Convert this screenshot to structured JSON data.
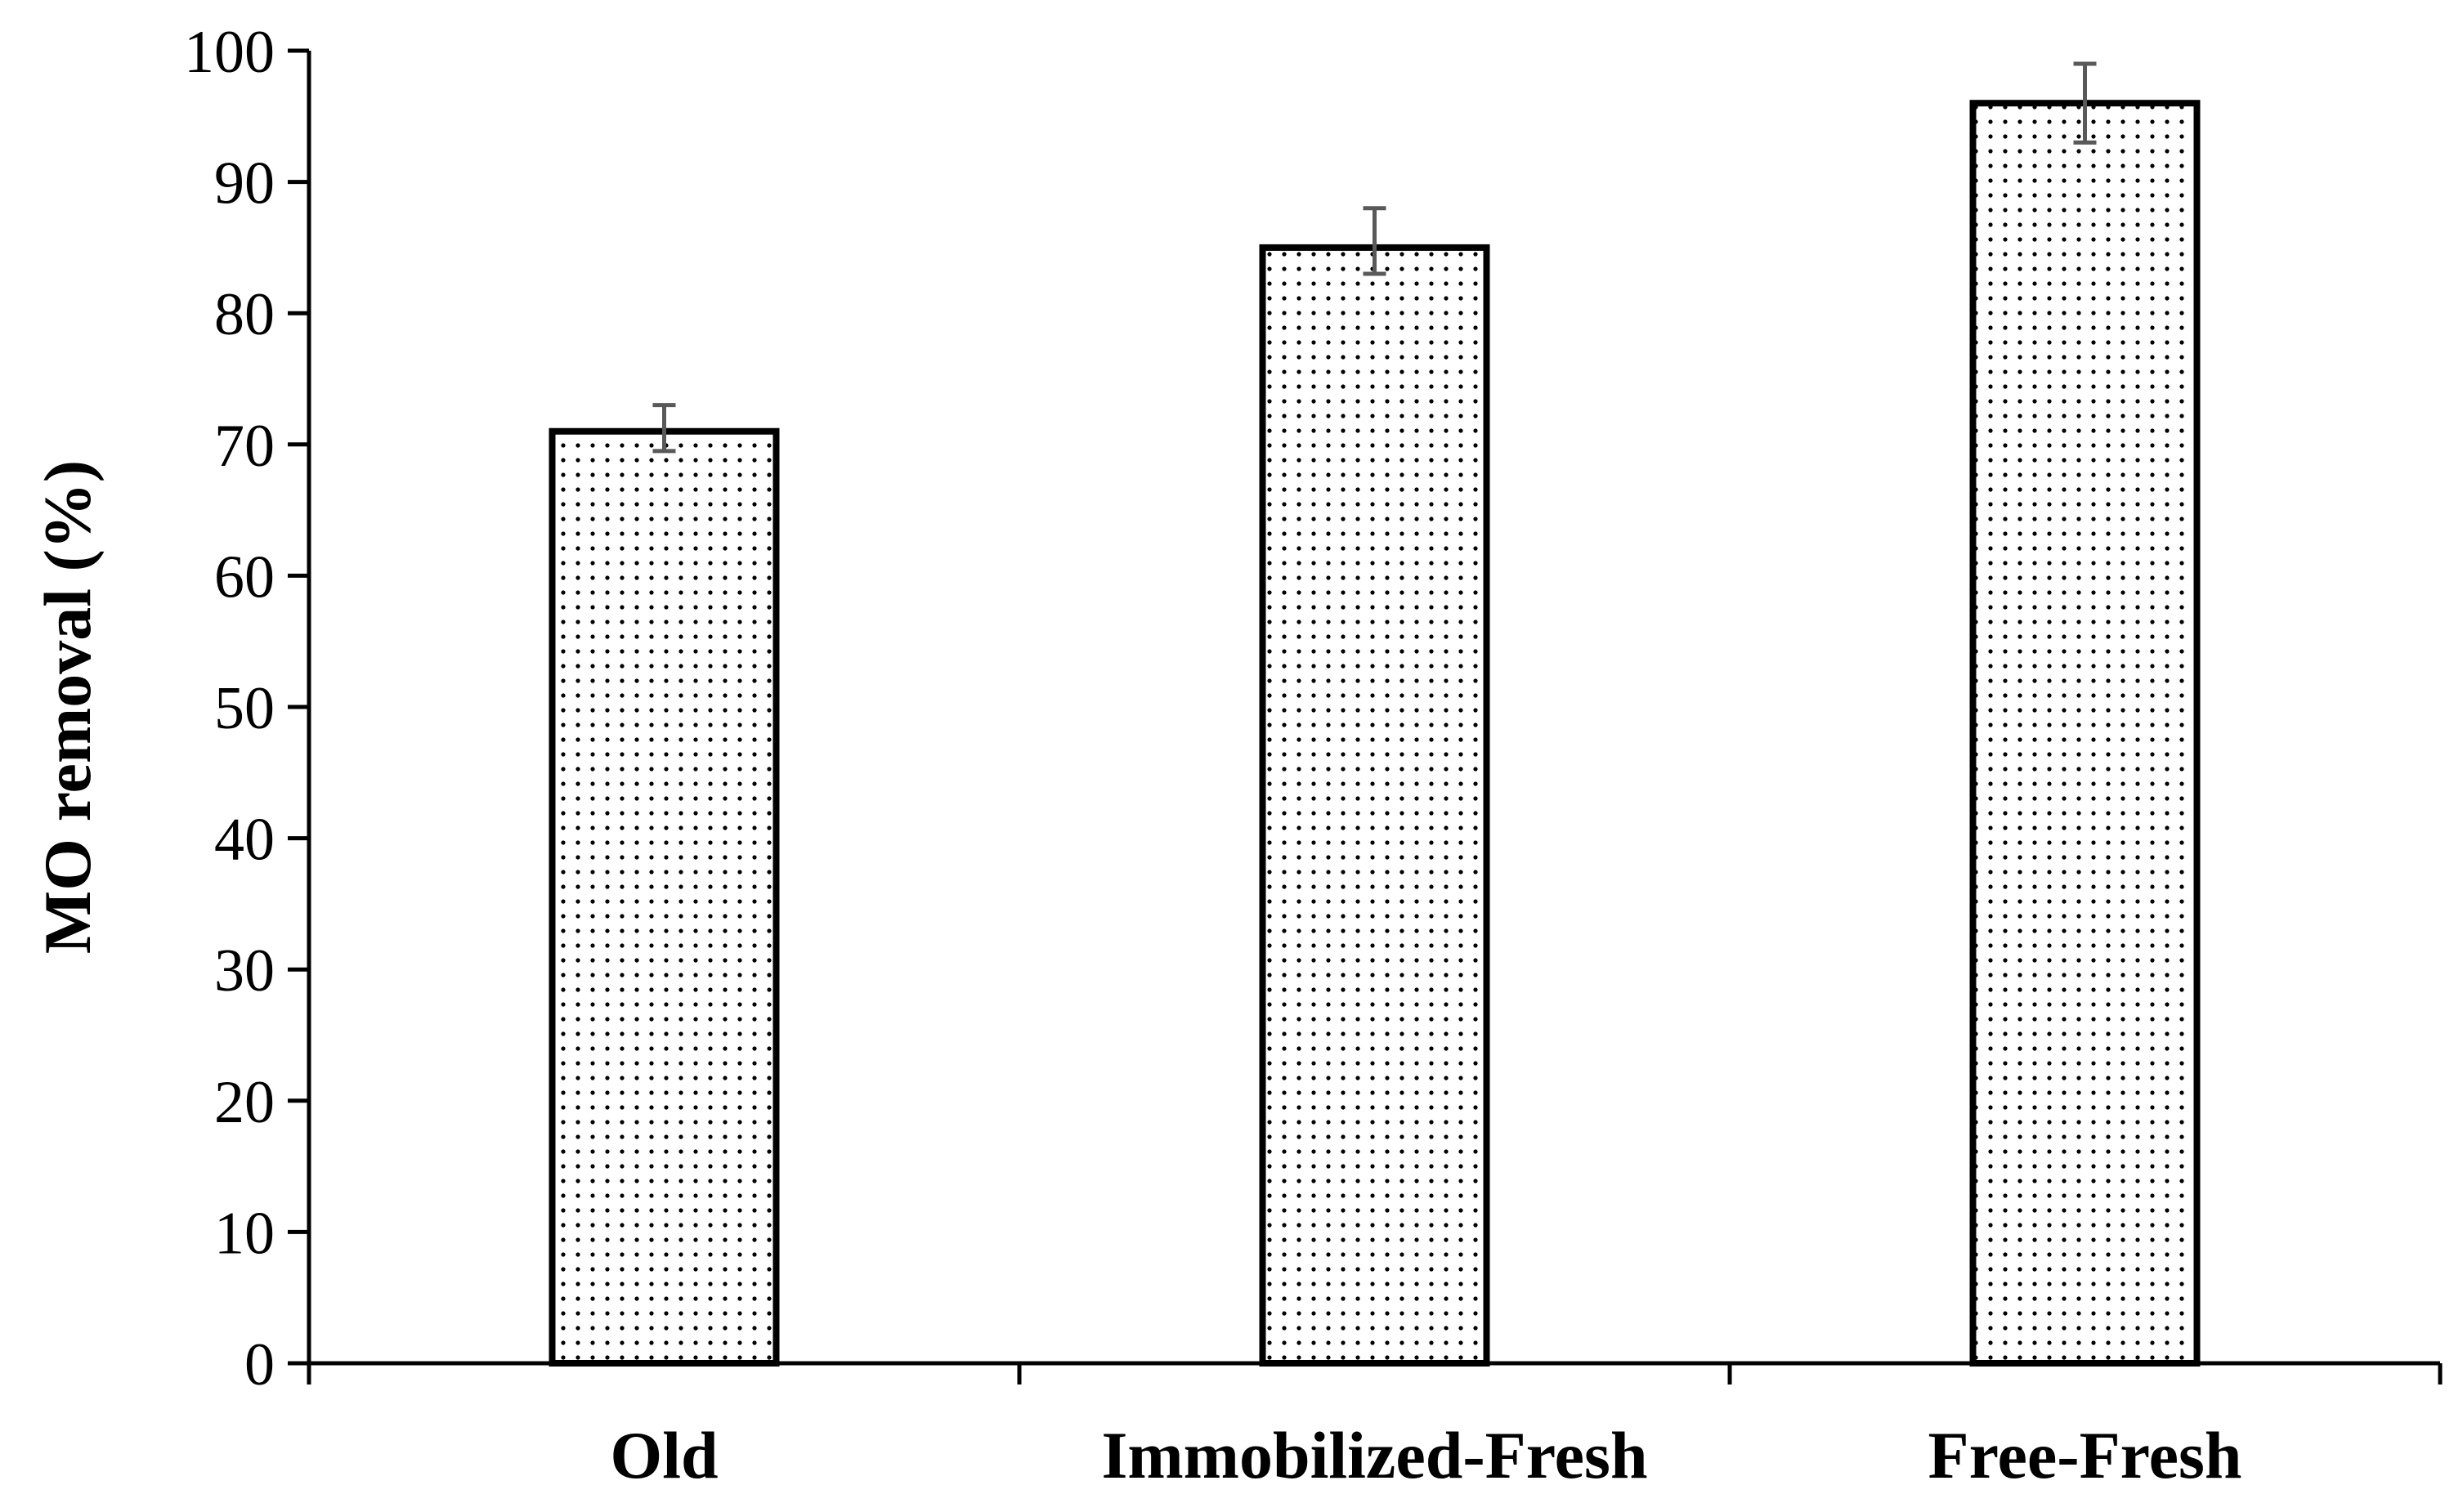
{
  "chart_data": {
    "type": "bar",
    "title": "",
    "xlabel": "",
    "ylabel": "MO removal (%)",
    "categories": [
      "Old",
      "Immobilized-Fresh",
      "Free-Fresh"
    ],
    "values": [
      71,
      85,
      96
    ],
    "error_low": [
      69.5,
      83,
      93
    ],
    "error_high": [
      73,
      88,
      99
    ],
    "ylim": [
      0,
      100
    ],
    "yticks": [
      0,
      10,
      20,
      30,
      40,
      50,
      60,
      70,
      80,
      90,
      100
    ],
    "grid": false,
    "legend": "none",
    "bar_fill": "dotted pattern",
    "colors": {
      "bar_stroke": "#000000",
      "bar_fill": "#ffffff",
      "dots": "#000000",
      "error_bar": "#595959",
      "axis": "#000000"
    }
  }
}
